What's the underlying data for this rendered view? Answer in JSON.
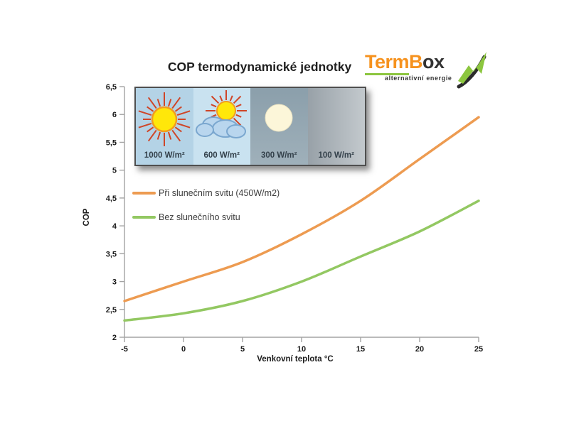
{
  "title": "COP termodynamické jednotky",
  "logo": {
    "part_term": "Term",
    "part_b": "B",
    "part_ox": "ox",
    "tagline": "alternativní energie",
    "orange": "#F6921E",
    "green": "#8CC63F",
    "dark": "#333333"
  },
  "inset": {
    "panels": [
      {
        "label": "1000 W/m²",
        "icon": "bright-sun"
      },
      {
        "label": "600 W/m²",
        "icon": "sun-behind-cloud"
      },
      {
        "label": "300 W/m²",
        "icon": "pale-sun"
      },
      {
        "label": "100 W/m²",
        "icon": "overcast-none"
      }
    ]
  },
  "legend": [
    {
      "label": "Při slunečním svitu (450W/m2)",
      "color": "#ED9B51"
    },
    {
      "label": "Bez slunečního svitu",
      "color": "#93C862"
    }
  ],
  "axes": {
    "ylabel": "COP",
    "xlabel": "Venkovní teplota °C"
  },
  "chart_data": {
    "type": "line",
    "title": "COP termodynamické jednotky",
    "xlabel": "Venkovní teplota °C",
    "ylabel": "COP",
    "x": [
      -5,
      0,
      5,
      10,
      15,
      20,
      25
    ],
    "series": [
      {
        "name": "Při slunečním svitu (450W/m2)",
        "color": "#ED9B51",
        "values": [
          2.65,
          3.0,
          3.35,
          3.85,
          4.45,
          5.2,
          5.95
        ]
      },
      {
        "name": "Bez slunečního svitu",
        "color": "#93C862",
        "values": [
          2.3,
          2.43,
          2.65,
          3.0,
          3.45,
          3.9,
          4.45
        ]
      }
    ],
    "xlim": [
      -5,
      25
    ],
    "ylim": [
      2,
      6.5
    ],
    "xtick_step": 5,
    "ytick_step": 0.5,
    "x_tick_labels": [
      "-5",
      "0",
      "5",
      "10",
      "15",
      "20",
      "25"
    ],
    "y_tick_labels": [
      "6,5",
      "6",
      "5,5",
      "5",
      "4,5",
      "4",
      "3,5",
      "3",
      "2,5",
      "2"
    ],
    "grid": false,
    "legend_position": "upper-left-inside",
    "axis_color": "#a3a3a3"
  }
}
